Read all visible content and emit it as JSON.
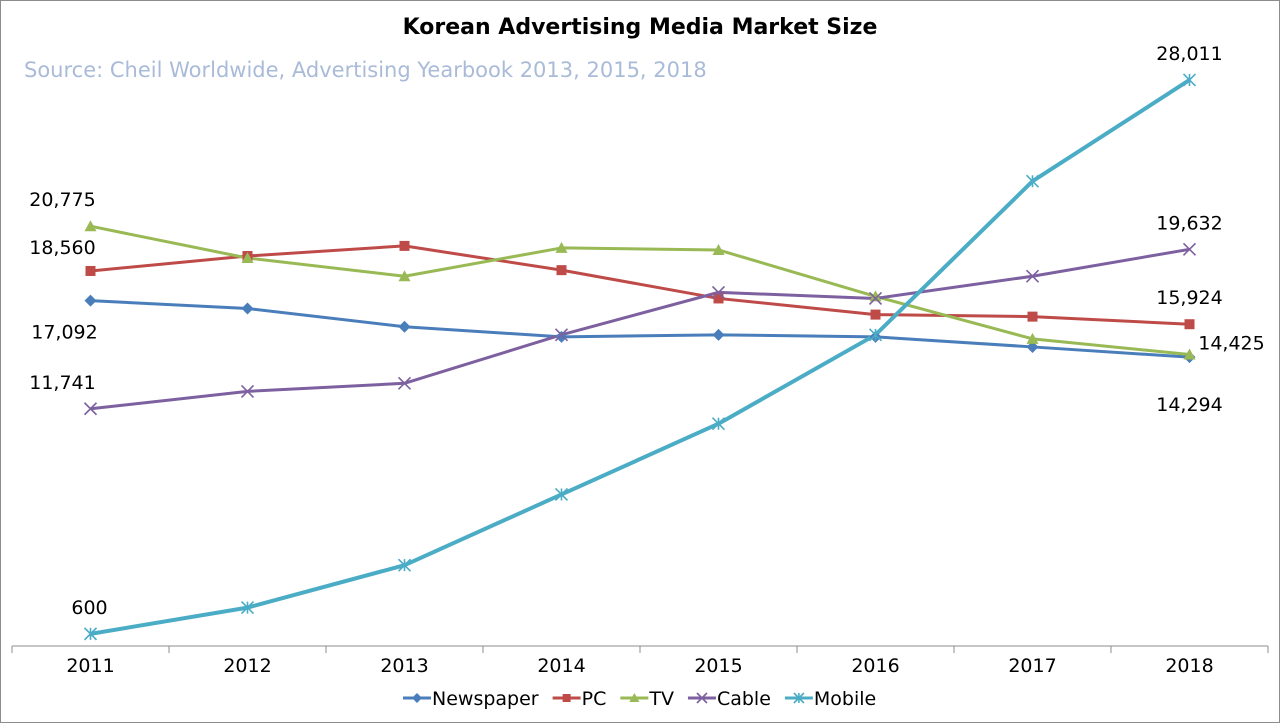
{
  "chart_data": {
    "type": "line",
    "title": "Korean Advertising Media Market Size",
    "subtitle": "Source: Cheil Worldwide, Advertising Yearbook 2013, 2015, 2018",
    "categories": [
      "2011",
      "2012",
      "2013",
      "2014",
      "2015",
      "2016",
      "2017",
      "2018"
    ],
    "ylim": [
      0,
      29000
    ],
    "grid": false,
    "legend_position": "bottom",
    "series": [
      {
        "name": "Newspaper",
        "color": "#4a7ebb",
        "marker": "diamond",
        "values": [
          17092,
          16700,
          15800,
          15300,
          15400,
          15300,
          14800,
          14294
        ]
      },
      {
        "name": "PC",
        "color": "#be4b48",
        "marker": "square",
        "values": [
          18560,
          19300,
          19800,
          18600,
          17200,
          16400,
          16300,
          15924
        ]
      },
      {
        "name": "TV",
        "color": "#98b954",
        "marker": "triangle",
        "values": [
          20775,
          19200,
          18300,
          19700,
          19600,
          17300,
          15200,
          14425
        ]
      },
      {
        "name": "Cable",
        "color": "#7d60a0",
        "marker": "x",
        "values": [
          11741,
          12600,
          13000,
          15400,
          17500,
          17200,
          18300,
          19632
        ]
      },
      {
        "name": "Mobile",
        "color": "#4bacc6",
        "marker": "star",
        "values": [
          600,
          1900,
          4000,
          7500,
          11000,
          15400,
          23000,
          28011
        ]
      }
    ],
    "data_labels": [
      {
        "series": 1,
        "index": 0,
        "text": "18,560"
      },
      {
        "series": 2,
        "index": 0,
        "text": "20,775"
      },
      {
        "series": 0,
        "index": 0,
        "text": "17,092"
      },
      {
        "series": 3,
        "index": 0,
        "text": "11,741"
      },
      {
        "series": 4,
        "index": 0,
        "text": "600"
      },
      {
        "series": 4,
        "index": 7,
        "text": "28,011"
      },
      {
        "series": 3,
        "index": 7,
        "text": "19,632"
      },
      {
        "series": 1,
        "index": 7,
        "text": "15,924"
      },
      {
        "series": 2,
        "index": 7,
        "text": "14,425"
      },
      {
        "series": 0,
        "index": 7,
        "text": "14,294"
      }
    ]
  }
}
